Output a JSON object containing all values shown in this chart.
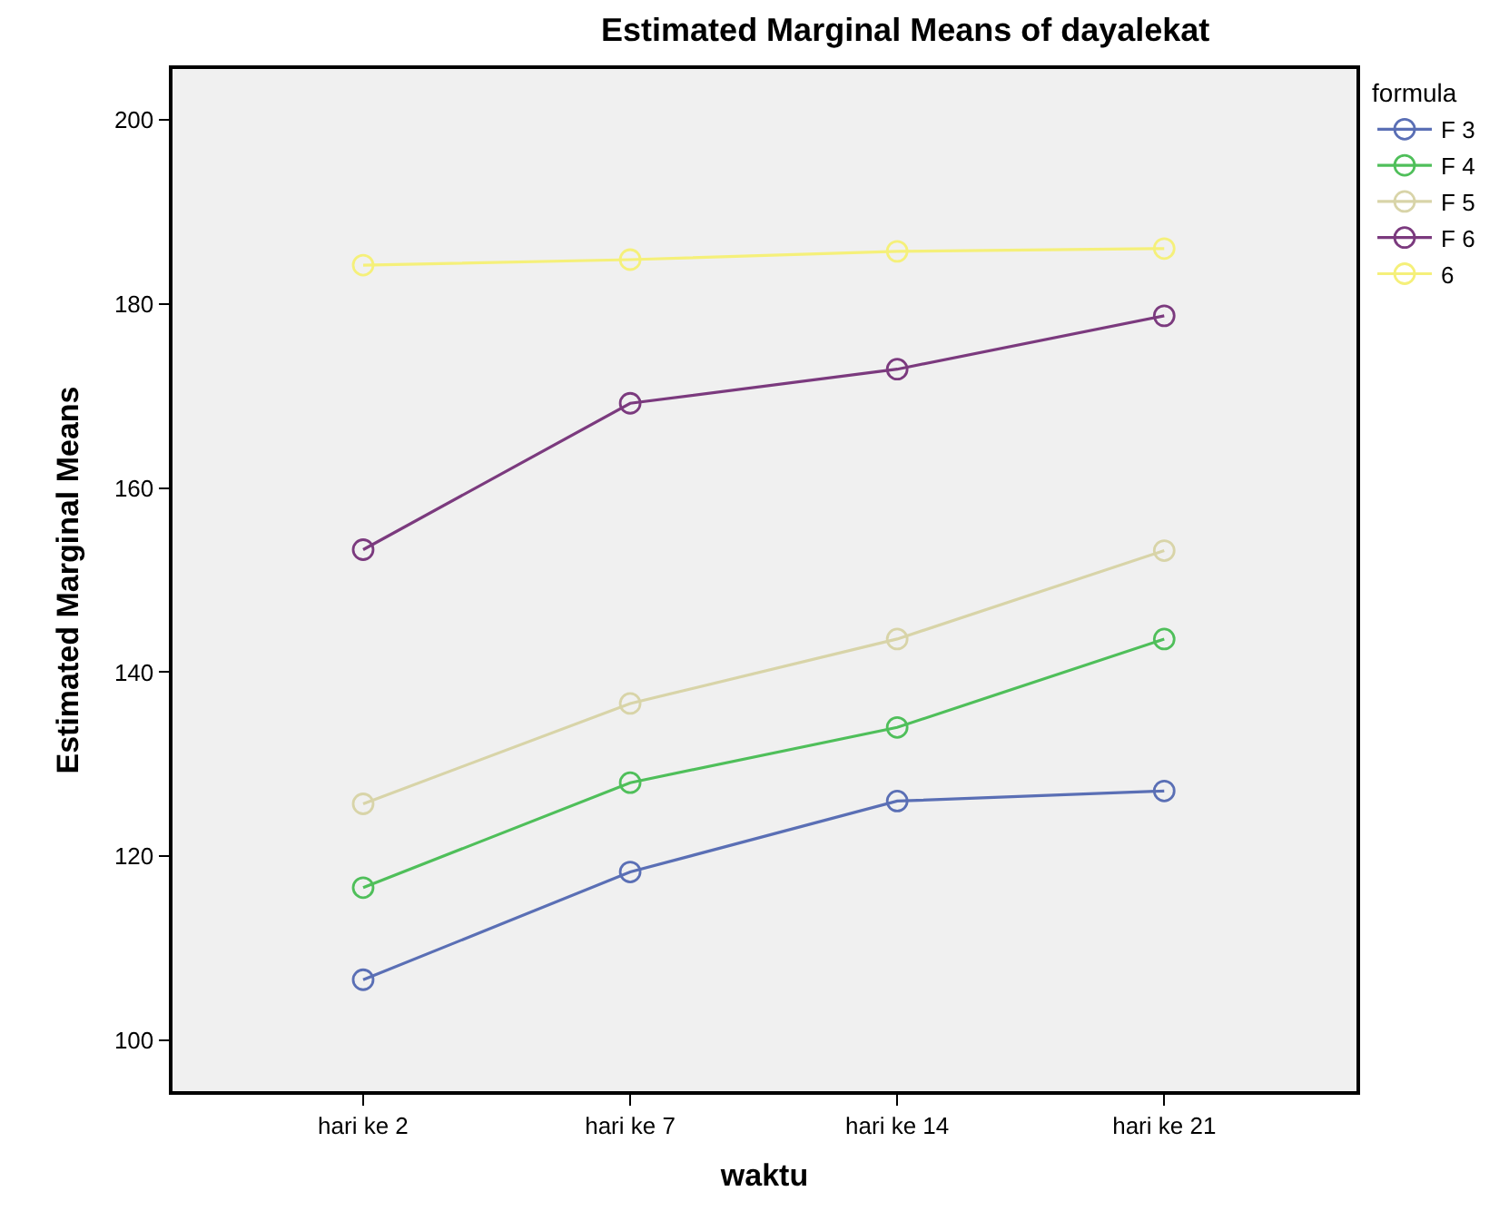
{
  "chart_data": {
    "type": "line",
    "title": "Estimated Marginal Means of dayalekat",
    "xlabel": "waktu",
    "ylabel": "Estimated Marginal Means",
    "legend_title": "formula",
    "categories": [
      "hari ke 2",
      "hari ke 7",
      "hari ke 14",
      "hari ke 21"
    ],
    "series": [
      {
        "name": "F 3",
        "color": "#5a6fb5",
        "values": [
          106.6,
          118.3,
          126.0,
          127.1
        ]
      },
      {
        "name": "F 4",
        "color": "#4fbf5a",
        "values": [
          116.6,
          128.0,
          134.0,
          143.6
        ]
      },
      {
        "name": "F 5",
        "color": "#d8d4a8",
        "values": [
          125.7,
          136.6,
          143.6,
          153.2
        ]
      },
      {
        "name": "F 6",
        "color": "#7b3a7e",
        "values": [
          153.3,
          169.2,
          172.9,
          178.7
        ]
      },
      {
        "name": "6",
        "color": "#f5f07a",
        "values": [
          184.2,
          184.8,
          185.7,
          186.0
        ]
      }
    ],
    "ylim": [
      94.5,
      205.5
    ],
    "yticks": [
      100,
      120,
      140,
      160,
      180,
      200
    ],
    "grid": false,
    "legend": "top right",
    "marker": "circle",
    "line_style": "solid"
  }
}
